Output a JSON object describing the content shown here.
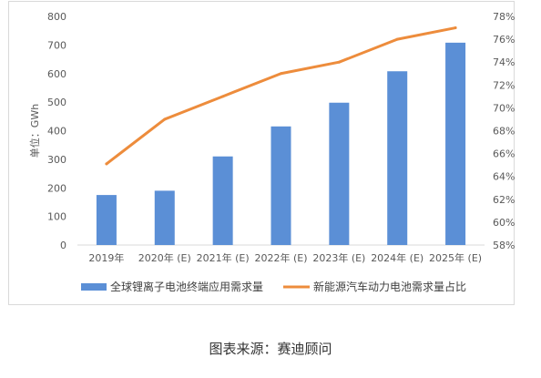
{
  "caption": "图表来源：赛迪顾问",
  "colors": {
    "bar": "#5b8fd6",
    "line": "#ed8c3c",
    "axis": "#d9d9d9"
  },
  "chart_data": {
    "type": "bar",
    "categories": [
      "2019年",
      "2020年 (E)",
      "2021年 (E)",
      "2022年 (E)",
      "2023年 (E)",
      "2024年 (E)",
      "2025年 (E)"
    ],
    "ylabel": "单位：GWh",
    "ylim": [
      0,
      800
    ],
    "yticks": [
      0,
      100,
      200,
      300,
      400,
      500,
      600,
      700,
      800
    ],
    "y2lim": [
      58,
      78
    ],
    "y2ticks": [
      "58%",
      "60%",
      "62%",
      "64%",
      "66%",
      "68%",
      "70%",
      "72%",
      "74%",
      "76%",
      "78%"
    ],
    "y2tick_values": [
      58,
      60,
      62,
      64,
      66,
      68,
      70,
      72,
      74,
      76,
      78
    ],
    "legend_position": "bottom",
    "series": [
      {
        "name": "全球锂离子电池终端应用需求量",
        "type": "bar",
        "axis": "left",
        "values": [
          175,
          190,
          310,
          415,
          498,
          608,
          708
        ]
      },
      {
        "name": "新能源汽车动力电池需求量占比",
        "type": "line",
        "axis": "right",
        "values": [
          65.1,
          69.0,
          71.0,
          73.0,
          74.0,
          76.0,
          77.0
        ]
      }
    ]
  }
}
